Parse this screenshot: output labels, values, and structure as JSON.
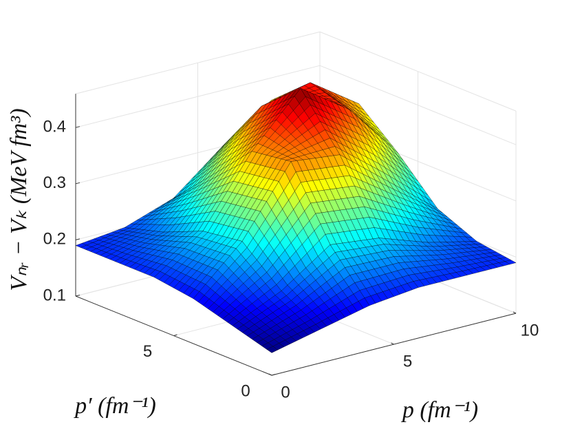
{
  "chart_data": {
    "type": "surface",
    "x": [
      0,
      2,
      4,
      6,
      8,
      10
    ],
    "y": [
      0,
      2,
      4,
      6,
      8,
      10
    ],
    "z": [
      [
        0.14,
        0.16,
        0.18,
        0.19,
        0.19,
        0.19
      ],
      [
        0.16,
        0.2,
        0.26,
        0.25,
        0.22,
        0.2
      ],
      [
        0.18,
        0.26,
        0.38,
        0.37,
        0.3,
        0.23
      ],
      [
        0.19,
        0.25,
        0.37,
        0.46,
        0.4,
        0.3
      ],
      [
        0.19,
        0.22,
        0.3,
        0.4,
        0.42,
        0.36
      ],
      [
        0.19,
        0.2,
        0.23,
        0.3,
        0.36,
        0.33
      ]
    ],
    "xlabel": "p (fm⁻¹)",
    "ylabel": "p′ (fm⁻¹)",
    "zlabel": "Vₙᵣ − Vₖ (MeV fm³)",
    "xlim": [
      0,
      10
    ],
    "ylim": [
      0,
      10
    ],
    "zlim": [
      0.1,
      0.46
    ],
    "xticks": [
      0,
      5,
      10
    ],
    "yticks": [
      0,
      5
    ],
    "zticks": [
      0.1,
      0.2,
      0.3,
      0.4
    ],
    "colormap": "jet",
    "grid": true
  }
}
